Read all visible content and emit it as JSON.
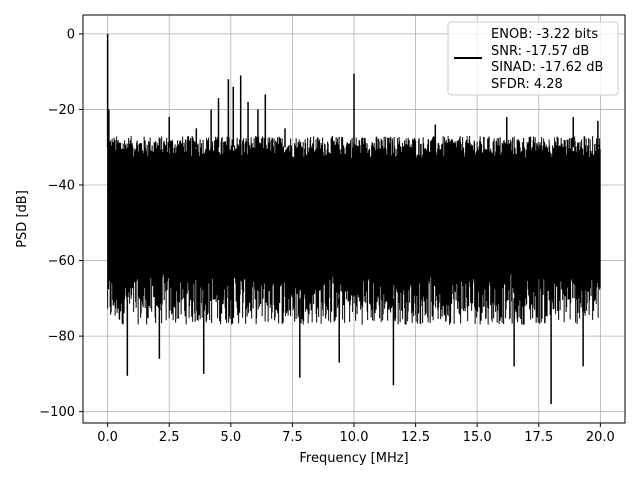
{
  "chart_data": {
    "type": "line",
    "title": "",
    "xlabel": "Frequency [MHz]",
    "ylabel": "PSD [dB]",
    "xlim": [
      -1.0,
      21.0
    ],
    "ylim": [
      -103.0,
      5.0
    ],
    "xticks": [
      0.0,
      2.5,
      5.0,
      7.5,
      10.0,
      12.5,
      15.0,
      17.5,
      20.0
    ],
    "xtick_labels": [
      "0.0",
      "2.5",
      "5.0",
      "7.5",
      "10.0",
      "12.5",
      "15.0",
      "17.5",
      "20.0"
    ],
    "yticks": [
      0,
      -20,
      -40,
      -60,
      -80,
      -100
    ],
    "ytick_labels": [
      "0",
      "−20",
      "−40",
      "−60",
      "−80",
      "−100"
    ],
    "grid": true,
    "legend_position": "upper right",
    "legend_lines": [
      "ENOB: -3.22 bits",
      "SNR: -17.57 dB",
      "SINAD: -17.62 dB",
      "SFDR: 4.28"
    ],
    "series": [
      {
        "color": "#000000",
        "noise_floor": {
          "x_start": 0.0,
          "x_end": 20.0,
          "upper_dB": -30,
          "lower_dB": -70
        },
        "peaks": [
          {
            "x": 0.0,
            "y": 0.0
          },
          {
            "x": 0.05,
            "y": -20.0
          },
          {
            "x": 2.5,
            "y": -22.0
          },
          {
            "x": 3.6,
            "y": -25.0
          },
          {
            "x": 4.2,
            "y": -20.0
          },
          {
            "x": 4.5,
            "y": -17.0
          },
          {
            "x": 4.9,
            "y": -12.0
          },
          {
            "x": 5.1,
            "y": -14.0
          },
          {
            "x": 5.4,
            "y": -11.0
          },
          {
            "x": 5.7,
            "y": -18.0
          },
          {
            "x": 6.1,
            "y": -20.0
          },
          {
            "x": 6.4,
            "y": -16.0
          },
          {
            "x": 7.2,
            "y": -25.0
          },
          {
            "x": 10.0,
            "y": -10.5
          },
          {
            "x": 13.3,
            "y": -24.0
          },
          {
            "x": 16.2,
            "y": -22.0
          },
          {
            "x": 18.9,
            "y": -22.0
          },
          {
            "x": 19.9,
            "y": -23.0
          }
        ],
        "dips": [
          {
            "x": 0.8,
            "y": -90.5
          },
          {
            "x": 2.1,
            "y": -86.0
          },
          {
            "x": 3.9,
            "y": -90.0
          },
          {
            "x": 7.8,
            "y": -91.0
          },
          {
            "x": 9.4,
            "y": -87.0
          },
          {
            "x": 11.6,
            "y": -93.0
          },
          {
            "x": 16.5,
            "y": -88.0
          },
          {
            "x": 18.0,
            "y": -98.0
          },
          {
            "x": 19.3,
            "y": -88.0
          }
        ]
      }
    ]
  }
}
